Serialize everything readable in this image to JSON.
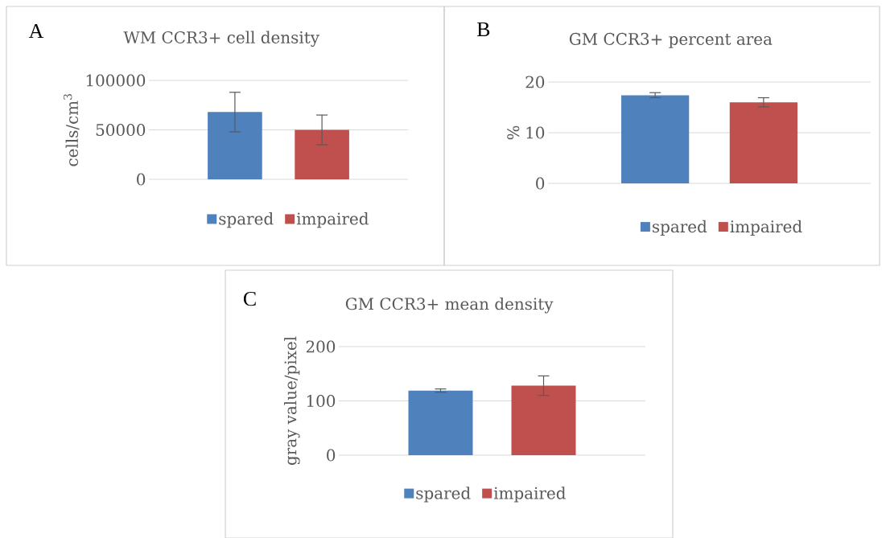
{
  "chart_data": [
    {
      "type": "bar",
      "title": "WM CCR3+ cell density",
      "ylabel": "cells/cm$^{3}$",
      "annotations": [
        "A"
      ],
      "categories": [
        null
      ],
      "series": [
        {
          "name": "spared",
          "color": "#4f81bd",
          "values": [
            68000
          ],
          "errors": [
            20000
          ]
        },
        {
          "name": "impaired",
          "color": "#c0504d",
          "values": [
            50000
          ],
          "errors": [
            15000
          ]
        }
      ],
      "ylim": [
        0,
        100000
      ],
      "yticks": [
        0,
        50000,
        100000
      ],
      "grid": "y",
      "legend": "bottom"
    },
    {
      "type": "bar",
      "title": "GM CCR3+ percent area",
      "ylabel": "%",
      "annotations": [
        "B"
      ],
      "categories": [
        null
      ],
      "series": [
        {
          "name": "spared",
          "color": "#4f81bd",
          "values": [
            17.4
          ],
          "errors": [
            0.5
          ]
        },
        {
          "name": "impaired",
          "color": "#c0504d",
          "values": [
            16.0
          ],
          "errors": [
            0.9
          ]
        }
      ],
      "ylim": [
        0,
        20
      ],
      "yticks": [
        0,
        10,
        20
      ],
      "grid": "y",
      "legend": "bottom"
    },
    {
      "type": "bar",
      "title": "GM CCR3+ mean density",
      "ylabel": "gray value/pixel",
      "annotations": [
        "C"
      ],
      "categories": [
        null
      ],
      "series": [
        {
          "name": "spared",
          "color": "#4f81bd",
          "values": [
            119
          ],
          "errors": [
            3
          ]
        },
        {
          "name": "impaired",
          "color": "#c0504d",
          "values": [
            128
          ],
          "errors": [
            18
          ]
        }
      ],
      "ylim": [
        0,
        200
      ],
      "yticks": [
        0,
        100,
        200
      ],
      "grid": "y",
      "legend": "bottom"
    }
  ]
}
